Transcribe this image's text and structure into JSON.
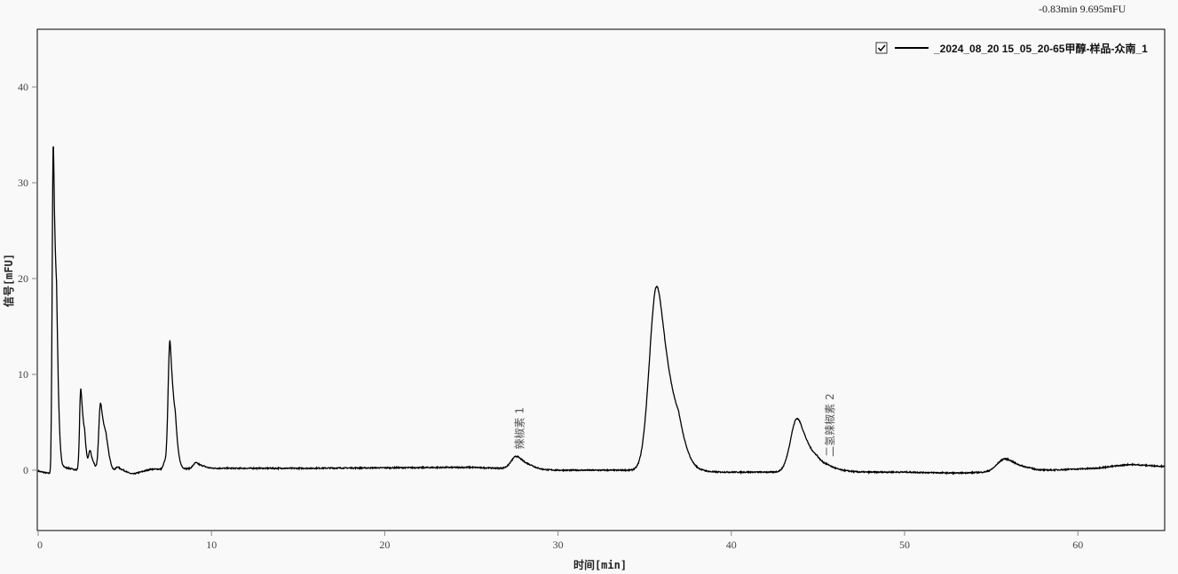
{
  "cursor_readout": "-0.83min  9.695mFU",
  "chart_data": {
    "type": "line",
    "title": "",
    "xlabel": "时间[min]",
    "ylabel": "信号[mFU]",
    "xlim": [
      0,
      65
    ],
    "ylim": [
      -6.5,
      46
    ],
    "xticks": [
      0,
      10,
      20,
      30,
      40,
      50,
      60
    ],
    "yticks": [
      0,
      10,
      20,
      30,
      40
    ],
    "grid": false,
    "legend": {
      "position": "top-right",
      "checked": true,
      "entries": [
        "_2024_08_20 15_05_20-65甲醇-样品-众南_1"
      ]
    },
    "series": [
      {
        "name": "_2024_08_20 15_05_20-65甲醇-样品-众南_1",
        "color": "#000000",
        "baseline": [
          [
            0,
            -0.1
          ],
          [
            0.8,
            -0.4
          ],
          [
            1.5,
            0.3
          ],
          [
            2.3,
            0.0
          ],
          [
            5.5,
            -0.4
          ],
          [
            6.5,
            0.1
          ],
          [
            10,
            0.2
          ],
          [
            15,
            0.2
          ],
          [
            25,
            0.3
          ],
          [
            30,
            0.0
          ],
          [
            34,
            0.0
          ],
          [
            38,
            -0.2
          ],
          [
            50,
            -0.2
          ],
          [
            53,
            -0.3
          ],
          [
            57,
            -0.1
          ],
          [
            61,
            0.2
          ],
          [
            63,
            0.6
          ],
          [
            65,
            0.4
          ]
        ],
        "peaks": [
          {
            "rt": 0.87,
            "height": 34.5,
            "sigma": 0.06,
            "tail": 0.12
          },
          {
            "rt": 2.46,
            "height": 8.5,
            "sigma": 0.07,
            "tail": 0.12
          },
          {
            "rt": 3.0,
            "height": 2.0,
            "sigma": 0.08,
            "tail": 0.1
          },
          {
            "rt": 3.6,
            "height": 7.2,
            "sigma": 0.1,
            "tail": 0.2
          },
          {
            "rt": 4.6,
            "height": 0.6,
            "sigma": 0.12,
            "tail": 0.2
          },
          {
            "rt": 7.3,
            "height": 0.7,
            "sigma": 0.08,
            "tail": 0.1
          },
          {
            "rt": 7.6,
            "height": 13.2,
            "sigma": 0.1,
            "tail": 0.15
          },
          {
            "rt": 9.1,
            "height": 0.6,
            "sigma": 0.15,
            "tail": 0.2
          },
          {
            "rt": 27.6,
            "height": 1.3,
            "sigma": 0.3,
            "tail": 0.3
          },
          {
            "rt": 35.7,
            "height": 19.3,
            "sigma": 0.42,
            "tail": 0.4
          },
          {
            "rt": 37.2,
            "height": 0.5,
            "sigma": 0.4,
            "tail": 0.3
          },
          {
            "rt": 43.8,
            "height": 5.6,
            "sigma": 0.38,
            "tail": 0.35
          },
          {
            "rt": 45.6,
            "height": 0.5,
            "sigma": 0.4,
            "tail": 0.3
          },
          {
            "rt": 55.8,
            "height": 1.35,
            "sigma": 0.45,
            "tail": 0.4
          }
        ]
      }
    ],
    "annotations": [
      {
        "text": "辣椒素 1",
        "x": 27.8
      },
      {
        "text": "二氢辣椒素 2",
        "x": 45.7
      }
    ]
  }
}
